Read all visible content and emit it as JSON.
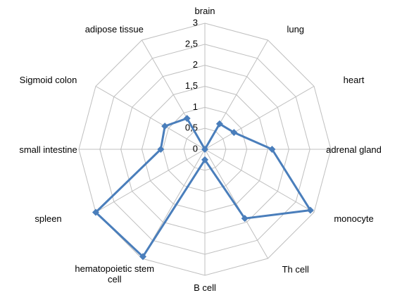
{
  "chart_data": {
    "type": "radar",
    "categories": [
      "brain",
      "lung",
      "heart",
      "adrenal gland",
      "monocyte",
      "Th cell",
      "B cell",
      "hematopoietic stem cell",
      "spleen",
      "small intestine",
      "Sigmoid colon",
      "adipose tissue"
    ],
    "series": [
      {
        "color": "#4a7ebb",
        "values": [
          0,
          0.7,
          0.8,
          1.6,
          2.9,
          1.9,
          0.25,
          2.95,
          3.0,
          1.05,
          1.1,
          0.85
        ]
      }
    ],
    "ylim": [
      0,
      3
    ],
    "yticks": [
      0,
      {
        "value": 0.5,
        "label": "0,5"
      },
      1,
      {
        "value": 1.5,
        "label": "1,5"
      },
      2,
      {
        "value": 2.5,
        "label": "2,5"
      },
      3
    ],
    "grid": true
  }
}
